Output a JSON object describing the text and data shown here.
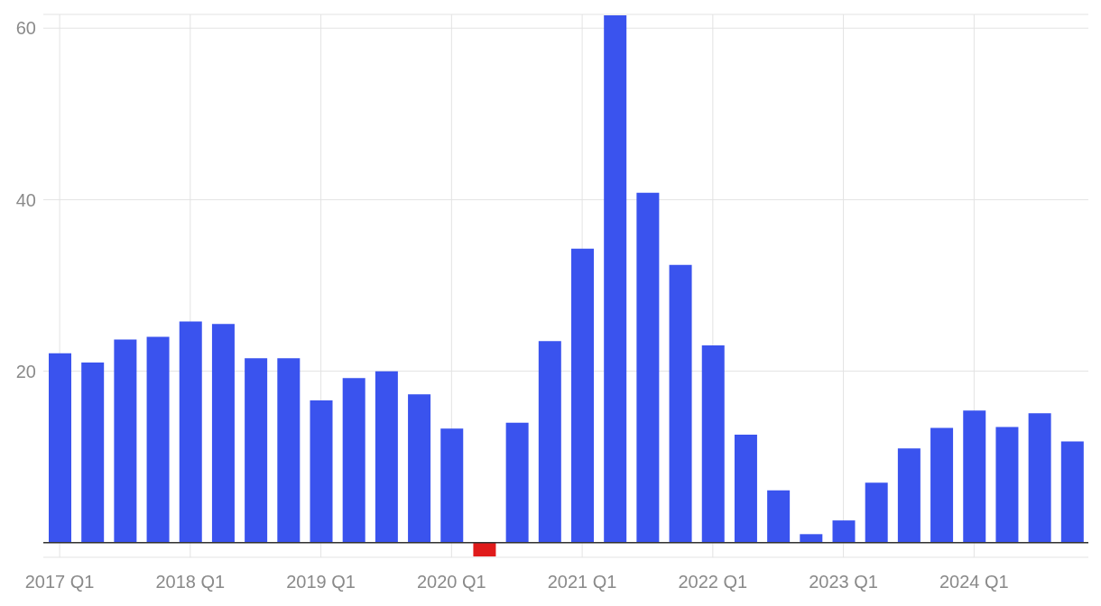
{
  "chart_data": {
    "type": "bar",
    "categories": [
      "2017 Q1",
      null,
      null,
      null,
      "2018 Q1",
      null,
      null,
      null,
      "2019 Q1",
      null,
      null,
      null,
      "2020 Q1",
      null,
      null,
      null,
      "2021 Q1",
      null,
      null,
      null,
      "2022 Q1",
      null,
      null,
      null,
      "2023 Q1",
      null,
      null,
      null,
      "2024 Q1",
      null,
      null,
      null
    ],
    "values": [
      22.1,
      21.0,
      23.7,
      24.0,
      25.8,
      25.5,
      21.5,
      21.5,
      16.6,
      19.2,
      20.0,
      17.3,
      13.3,
      -1.6,
      14.0,
      23.5,
      34.3,
      61.5,
      40.8,
      32.4,
      23.0,
      12.6,
      6.1,
      1.0,
      2.6,
      7.0,
      11.0,
      13.4,
      15.4,
      13.5,
      15.1,
      11.8
    ],
    "colors": [
      "#3a53ee",
      "#3a53ee",
      "#3a53ee",
      "#3a53ee",
      "#3a53ee",
      "#3a53ee",
      "#3a53ee",
      "#3a53ee",
      "#3a53ee",
      "#3a53ee",
      "#3a53ee",
      "#3a53ee",
      "#3a53ee",
      "#e01b1b",
      "#3a53ee",
      "#3a53ee",
      "#3a53ee",
      "#3a53ee",
      "#3a53ee",
      "#3a53ee",
      "#3a53ee",
      "#3a53ee",
      "#3a53ee",
      "#3a53ee",
      "#3a53ee",
      "#3a53ee",
      "#3a53ee",
      "#3a53ee",
      "#3a53ee",
      "#3a53ee",
      "#3a53ee",
      "#3a53ee"
    ],
    "ylim": [
      -1.7,
      61.6
    ],
    "yticks": [
      {
        "value": 0,
        "label": null
      },
      20,
      40,
      60
    ],
    "grid": true
  }
}
